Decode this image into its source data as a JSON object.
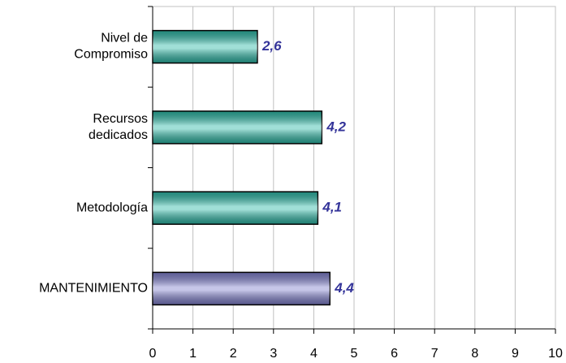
{
  "chart_data": {
    "type": "hbar",
    "categories": [
      "Nivel de Compromiso",
      "Recursos dedicados",
      "Metodología",
      "MANTENIMIENTO"
    ],
    "values": [
      2.6,
      4.2,
      4.1,
      4.4
    ],
    "value_labels": [
      "2,6",
      "4,2",
      "4,1",
      "4,4"
    ],
    "colors": [
      "#2db8a6",
      "#2db8a6",
      "#2db8a6",
      "#8080cc"
    ],
    "xlim": [
      0,
      10
    ],
    "xticks": [
      0,
      1,
      2,
      3,
      4,
      5,
      6,
      7,
      8,
      9,
      10
    ],
    "grid": true
  }
}
